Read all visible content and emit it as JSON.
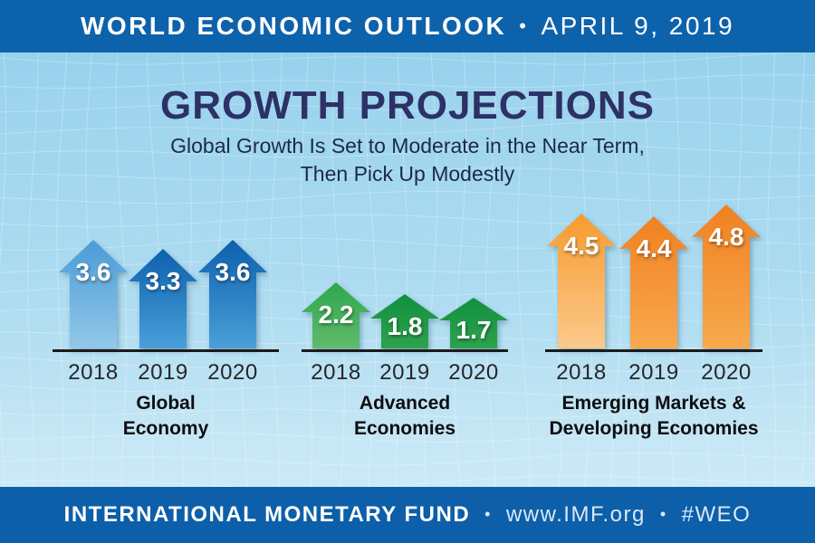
{
  "header": {
    "title": "WORLD ECONOMIC OUTLOOK",
    "separator": "•",
    "date": "APRIL 9, 2019"
  },
  "title": "GROWTH PROJECTIONS",
  "subtitle": {
    "lines": [
      "Global Growth Is Set to Moderate in the Near Term,",
      "Then Pick Up Modestly"
    ]
  },
  "chart_data": {
    "type": "bar",
    "title": "GROWTH PROJECTIONS",
    "subtitle": "Global Growth Is Set to Moderate in the Near Term, Then Pick Up Modestly",
    "categories": [
      "2018",
      "2019",
      "2020"
    ],
    "series": [
      {
        "name": "Global Economy",
        "name_lines": [
          "Global",
          "Economy"
        ],
        "values": [
          3.6,
          3.3,
          3.6
        ],
        "value_labels": [
          "3.6",
          "3.3",
          "3.6"
        ],
        "arrow_colors": [
          {
            "top": "#4a9cd6",
            "bottom": "#92c8e9"
          },
          {
            "top": "#0d60ad",
            "bottom": "#4aa0d9"
          },
          {
            "top": "#0d60ad",
            "bottom": "#4aa0d9"
          }
        ]
      },
      {
        "name": "Advanced Economies",
        "name_lines": [
          "Advanced",
          "Economies"
        ],
        "values": [
          2.2,
          1.8,
          1.7
        ],
        "value_labels": [
          "2.2",
          "1.8",
          "1.7"
        ],
        "arrow_colors": [
          {
            "top": "#2fa74d",
            "bottom": "#60bb6e"
          },
          {
            "top": "#12903f",
            "bottom": "#2da24d"
          },
          {
            "top": "#12903f",
            "bottom": "#2da24d"
          }
        ]
      },
      {
        "name": "Emerging Markets & Developing Economies",
        "name_lines": [
          "Emerging Markets &",
          "Developing Economies"
        ],
        "values": [
          4.5,
          4.4,
          4.8
        ],
        "value_labels": [
          "4.5",
          "4.4",
          "4.8"
        ],
        "arrow_colors": [
          {
            "top": "#f79b2e",
            "bottom": "#fbc98d"
          },
          {
            "top": "#f08121",
            "bottom": "#f8a94e"
          },
          {
            "top": "#f08121",
            "bottom": "#f8a94e"
          }
        ]
      }
    ],
    "ylim": [
      0,
      5
    ],
    "grid": false,
    "legend": "none",
    "value_unit": "percent"
  },
  "footer": {
    "org": "INTERNATIONAL MONETARY FUND",
    "separator": "•",
    "url": "www.IMF.org",
    "hashtag": "#WEO"
  },
  "colors": {
    "banner_blue": "#0d62ac",
    "background_light_blue": "#aedcf1",
    "title_navy": "#2d3166",
    "baseline_black": "#1a1a18"
  }
}
